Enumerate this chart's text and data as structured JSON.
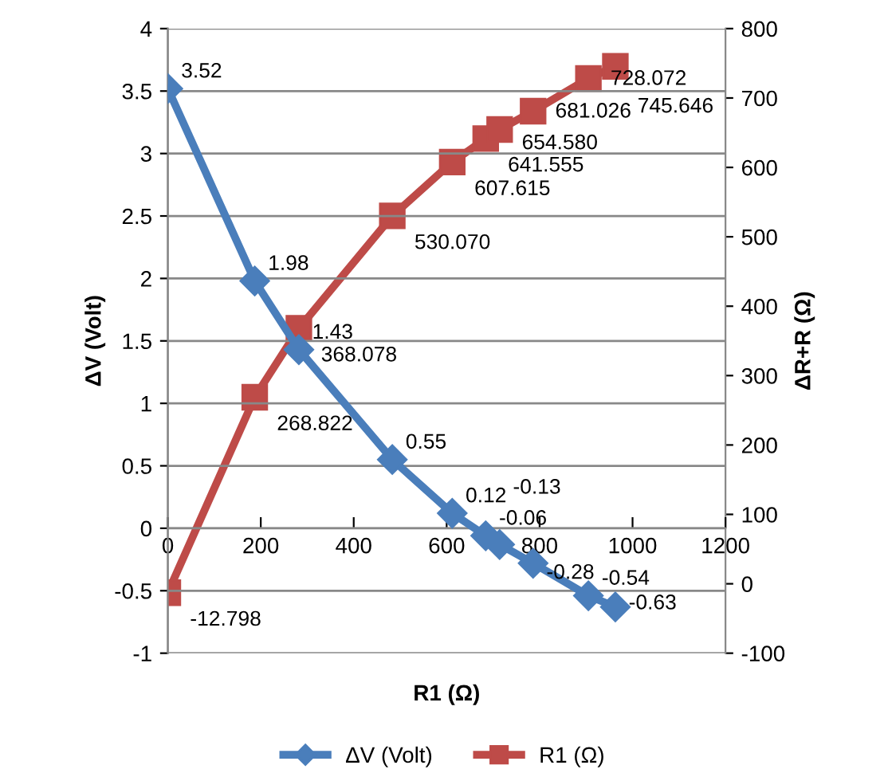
{
  "chart_data": {
    "type": "line",
    "xlabel": "R1 (Ω)",
    "ylabel": "ΔV (Volt)",
    "y2label": "ΔR+R (Ω)",
    "xlim": [
      0,
      1200
    ],
    "xticks": [
      0,
      200,
      400,
      600,
      800,
      1000,
      1200
    ],
    "ylim": [
      -1,
      4
    ],
    "yticks": [
      -1,
      -0.5,
      0,
      0.5,
      1,
      1.5,
      2,
      2.5,
      3,
      3.5,
      4
    ],
    "y2lim": [
      -100,
      800
    ],
    "y2ticks": [
      -100,
      0,
      100,
      200,
      300,
      400,
      500,
      600,
      700,
      800
    ],
    "grid": "y",
    "legend": "bottom",
    "line_style": "solid",
    "series": [
      {
        "name": "ΔV (Volt)",
        "color": "#4a7ebb",
        "marker": "diamond",
        "x": [
          0,
          187,
          282,
          483,
          612,
          684,
          714,
          786,
          905,
          963
        ],
        "values": [
          3.52,
          1.98,
          1.43,
          0.55,
          0.12,
          -0.06,
          -0.13,
          -0.28,
          -0.54,
          -0.63
        ],
        "value_labels": [
          "3.52",
          "1.98",
          "1.43",
          "0.55",
          "0.12",
          "-0.06",
          "-0.13",
          "-0.28",
          "-0.54",
          "-0.63"
        ]
      },
      {
        "name": "R1 (Ω)",
        "color": "#be4b48",
        "marker": "square",
        "axis": "y2",
        "x": [
          0,
          187,
          282,
          483,
          612,
          684,
          714,
          786,
          905,
          963
        ],
        "values": [
          -12.798,
          268.822,
          368.078,
          530.07,
          607.615,
          641.555,
          654.58,
          681.026,
          728.072,
          745.646
        ],
        "value_labels": [
          "-12.798",
          "268.822",
          "368.078",
          "530.070",
          "607.615",
          "641.555",
          "654.580",
          "681.026",
          "728.072",
          "745.646"
        ]
      }
    ]
  }
}
